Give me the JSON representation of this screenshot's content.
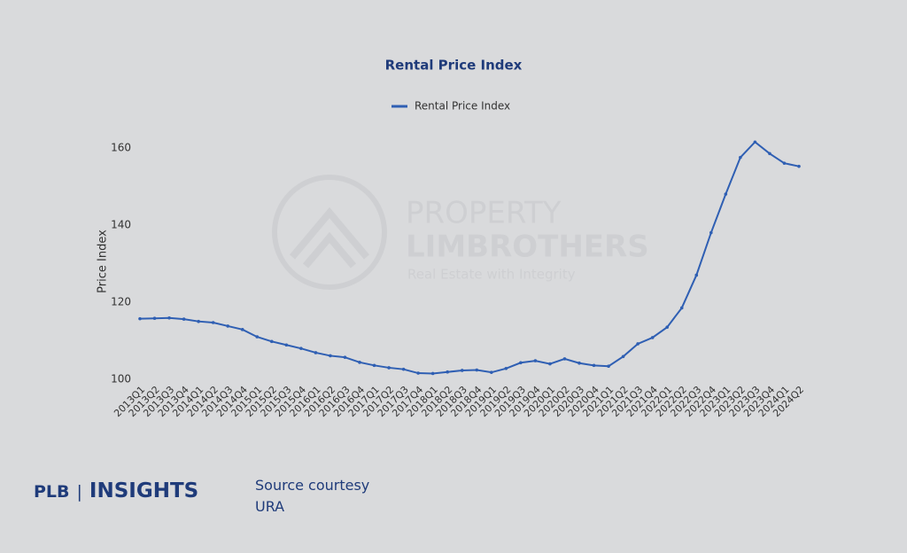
{
  "chart_data": {
    "type": "line",
    "title": "Rental Price Index",
    "y_label": "Price Index",
    "categories": [
      "2013Q1",
      "2013Q2",
      "2013Q3",
      "2013Q4",
      "2014Q1",
      "2014Q2",
      "2014Q3",
      "2014Q4",
      "2015Q1",
      "2015Q2",
      "2015Q3",
      "2015Q4",
      "2016Q1",
      "2016Q2",
      "2016Q3",
      "2016Q4",
      "2017Q1",
      "2017Q2",
      "2017Q3",
      "2017Q4",
      "2018Q1",
      "2018Q2",
      "2018Q3",
      "2018Q4",
      "2019Q1",
      "2019Q2",
      "2019Q3",
      "2019Q4",
      "2020Q1",
      "2020Q2",
      "2020Q3",
      "2020Q4",
      "2021Q1",
      "2021Q2",
      "2021Q3",
      "2021Q4",
      "2022Q1",
      "2022Q2",
      "2022Q3",
      "2022Q4",
      "2023Q1",
      "2023Q2",
      "2023Q3",
      "2023Q4",
      "2024Q1",
      "2024Q2"
    ],
    "series": [
      {
        "name": "Rental Price Index",
        "color": "#2f5fb3",
        "values": [
          115.7,
          115.8,
          115.9,
          115.6,
          115.0,
          114.7,
          113.8,
          112.9,
          111.0,
          109.8,
          108.9,
          108.0,
          106.9,
          106.1,
          105.7,
          104.4,
          103.6,
          103.0,
          102.6,
          101.6,
          101.5,
          101.9,
          102.3,
          102.4,
          101.8,
          102.8,
          104.3,
          104.8,
          104.0,
          105.3,
          104.2,
          103.6,
          103.4,
          105.9,
          109.2,
          110.8,
          113.5,
          118.5,
          127.0,
          138.0,
          148.0,
          157.5,
          161.5,
          158.5,
          156.0,
          155.2
        ]
      }
    ],
    "ylim": [
      100,
      165
    ],
    "yticks": [
      100,
      120,
      140,
      160
    ],
    "legend": "top"
  },
  "watermark": {
    "name_line1": "PROPERTY",
    "name_line2": "LIMBROTHERS",
    "tagline": "Real Estate with Integrity"
  },
  "footer": {
    "brand": "PLB",
    "product": "INSIGHTS",
    "source_label": "Source courtesy",
    "source": "URA"
  }
}
